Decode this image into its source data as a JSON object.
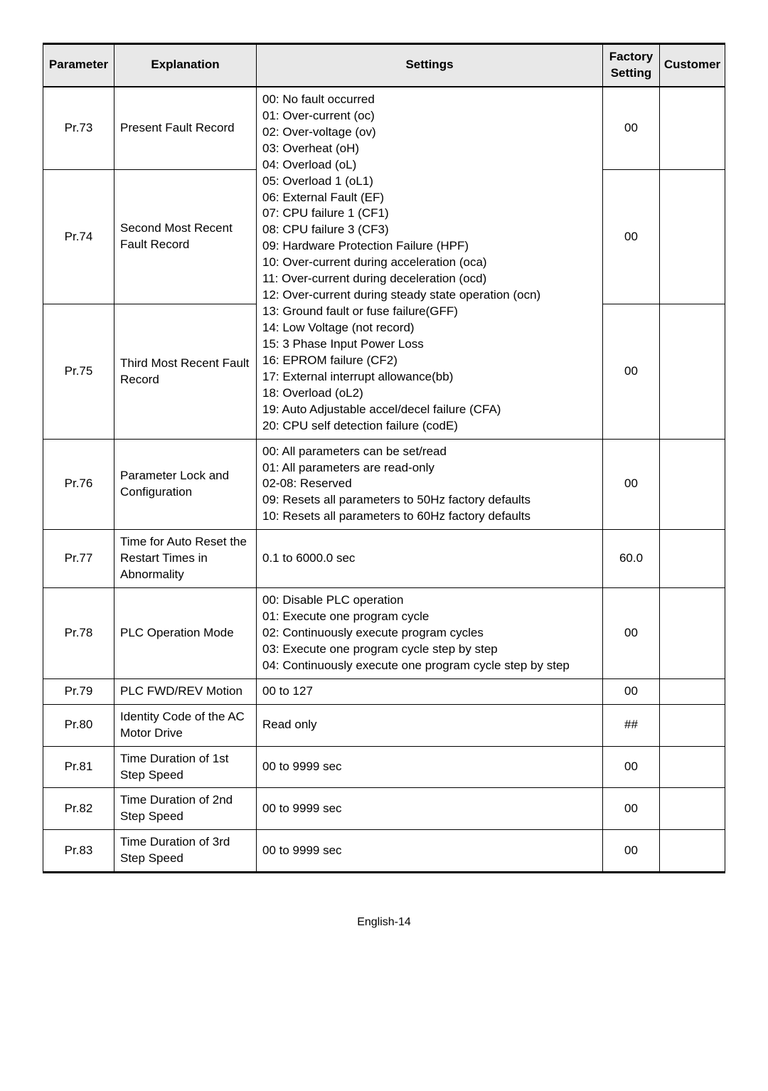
{
  "page_label": "English-14",
  "headers": {
    "parameter": "Parameter",
    "explanation": "Explanation",
    "settings": "Settings",
    "factory_setting": "Factory Setting",
    "customer": "Customer"
  },
  "rows": [
    {
      "param": "Pr.73",
      "expl": "Present Fault Record",
      "fact": "00",
      "cust": ""
    },
    {
      "param": "Pr.74",
      "expl": "Second Most Recent Fault Record",
      "fact": "00",
      "cust": ""
    },
    {
      "param": "Pr.75",
      "expl": "Third Most Recent Fault Record",
      "fact": "00",
      "cust": ""
    },
    {
      "param": "Pr.76",
      "expl": "Parameter Lock and Configuration",
      "fact": "00",
      "cust": ""
    },
    {
      "param": "Pr.77",
      "expl": "Time for Auto Reset the Restart Times in Abnormality",
      "fact": "60.0",
      "cust": ""
    },
    {
      "param": "Pr.78",
      "expl": "PLC Operation Mode",
      "fact": "00",
      "cust": ""
    },
    {
      "param": "Pr.79",
      "expl": "PLC FWD/REV Motion",
      "fact": "00",
      "cust": ""
    },
    {
      "param": "Pr.80",
      "expl": "Identity Code of the AC Motor Drive",
      "fact": "##",
      "cust": ""
    },
    {
      "param": "Pr.81",
      "expl": "Time Duration of 1st Step Speed",
      "fact": "00",
      "cust": ""
    },
    {
      "param": "Pr.82",
      "expl": "Time Duration of 2nd Step Speed",
      "fact": "00",
      "cust": ""
    },
    {
      "param": "Pr.83",
      "expl": "Time Duration of 3rd Step Speed",
      "fact": "00",
      "cust": ""
    }
  ],
  "fault_settings": [
    "00: No fault occurred",
    "01: Over-current (oc)",
    "02: Over-voltage (ov)",
    "03: Overheat (oH)",
    "04: Overload (oL)",
    "05: Overload 1 (oL1)",
    "06: External Fault (EF)",
    "07: CPU failure 1 (CF1)",
    "08: CPU failure 3 (CF3)",
    "09: Hardware Protection Failure (HPF)",
    "10: Over-current during acceleration (oca)",
    "11: Over-current during deceleration (ocd)",
    "12: Over-current during steady state operation (ocn)",
    "13: Ground fault or fuse failure(GFF)",
    "14: Low Voltage (not record)",
    "15: 3 Phase Input Power Loss",
    "16: EPROM failure (CF2)",
    "17: External interrupt allowance(bb)",
    "18: Overload (oL2)",
    "19: Auto Adjustable accel/decel failure (CFA)",
    "20: CPU self detection failure (codE)"
  ],
  "pr76_settings": [
    "00: All parameters can be set/read",
    "01: All parameters are read-only",
    "02-08: Reserved",
    "09: Resets all parameters to 50Hz factory defaults",
    "10: Resets all parameters to 60Hz factory defaults"
  ],
  "pr77_settings": "0.1 to 6000.0 sec",
  "pr78_settings": [
    "00: Disable PLC operation",
    "01: Execute one program cycle",
    "02: Continuously execute program cycles",
    "03: Execute one program cycle step by step",
    "04: Continuously execute one program cycle step by step"
  ],
  "pr79_settings": "00 to 127",
  "pr80_settings": "Read only",
  "pr81_settings": "00 to 9999 sec",
  "pr82_settings": "00 to 9999 sec",
  "pr83_settings": "00 to 9999 sec",
  "colors": {
    "header_bg": "#e8e8e8",
    "text": "#000000",
    "border": "#000000",
    "background": "#ffffff"
  },
  "typography": {
    "body_fontsize_pt": 13,
    "header_fontweight": "bold",
    "font_family": "Arial"
  }
}
